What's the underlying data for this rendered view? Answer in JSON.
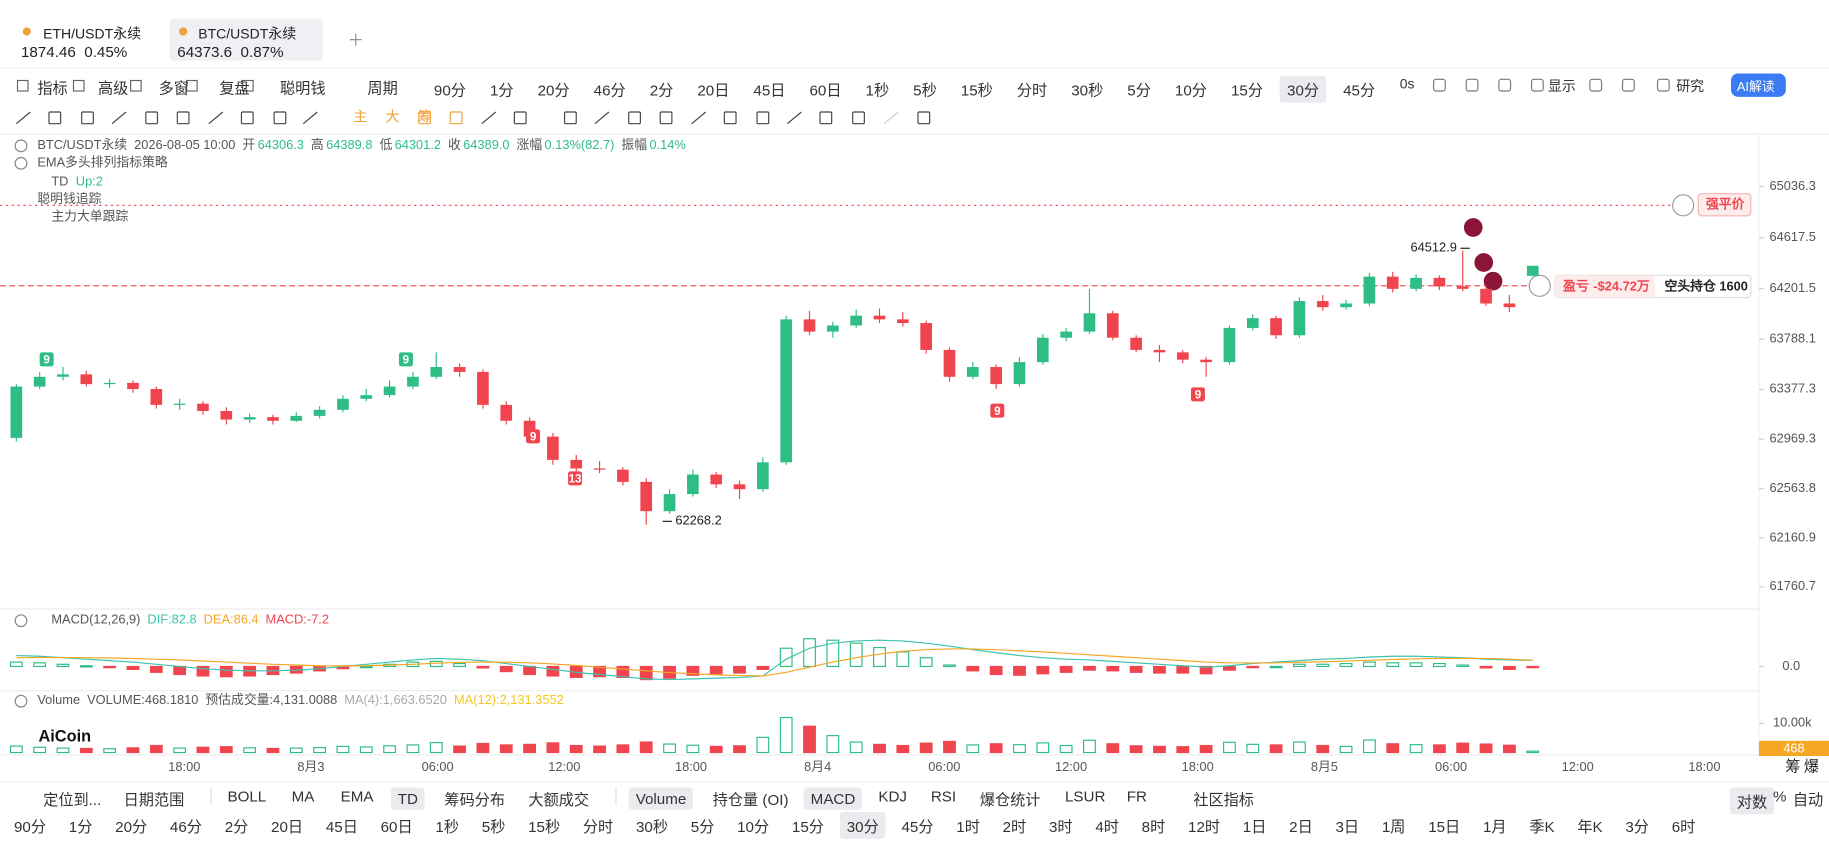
{
  "tabs": [
    {
      "symbol": "ETH/USDT永续",
      "price": "1874.46",
      "change": "0.45%"
    },
    {
      "symbol": "BTC/USDT永续",
      "price": "64373.6",
      "change": "0.87%"
    }
  ],
  "toolbar": {
    "tools": [
      "指标",
      "高级",
      "多窗",
      "复盘",
      "聪明钱"
    ],
    "period_label": "周期",
    "periods": [
      "90分",
      "1分",
      "20分",
      "46分",
      "2分",
      "20日",
      "45日",
      "60日",
      "1秒",
      "5秒",
      "15秒",
      "分时",
      "30秒",
      "5分",
      "10分",
      "15分",
      "30分",
      "45分"
    ],
    "active_period": 16,
    "right": [
      "0s",
      "显示",
      "研究",
      "AI解读"
    ]
  },
  "drawing_texts": [
    "主",
    "大",
    "筹"
  ],
  "legend": {
    "symbol": "BTC/USDT永续",
    "time": "2026-08-05 10:00",
    "fields": [
      {
        "label": "开",
        "value": "64306.3"
      },
      {
        "label": "高",
        "value": "64389.8"
      },
      {
        "label": "低",
        "value": "64301.2"
      },
      {
        "label": "收",
        "value": "64389.0"
      },
      {
        "label": "涨幅",
        "value": "0.13%(82.7)"
      },
      {
        "label": "振幅",
        "value": "0.14%"
      }
    ],
    "indicators": [
      "EMA多头排列指标策略",
      "TD",
      "Up:2",
      "聪明钱追踪",
      "主力大单跟踪"
    ]
  },
  "td_markers": [
    "9",
    "9",
    "9",
    "13",
    "9",
    "9"
  ],
  "overlays": {
    "liquidation": "强平价",
    "pnl_label": "盈亏",
    "pnl_value": "-$24.72万",
    "position": "空头持仓 1600"
  },
  "chart_data": [
    {
      "type": "candlestick",
      "up_color": "#2ebd85",
      "down_color": "#f0454f",
      "ohlc": [
        [
          62980,
          63420,
          62950,
          63400
        ],
        [
          63400,
          63520,
          63380,
          63480
        ],
        [
          63480,
          63560,
          63450,
          63500
        ],
        [
          63500,
          63530,
          63400,
          63420
        ],
        [
          63420,
          63460,
          63390,
          63430
        ],
        [
          63430,
          63450,
          63350,
          63380
        ],
        [
          63380,
          63400,
          63220,
          63250
        ],
        [
          63250,
          63300,
          63210,
          63260
        ],
        [
          63260,
          63280,
          63170,
          63200
        ],
        [
          63200,
          63230,
          63090,
          63130
        ],
        [
          63130,
          63180,
          63100,
          63150
        ],
        [
          63150,
          63170,
          63090,
          63120
        ],
        [
          63120,
          63190,
          63110,
          63160
        ],
        [
          63160,
          63240,
          63140,
          63210
        ],
        [
          63210,
          63330,
          63190,
          63300
        ],
        [
          63300,
          63380,
          63280,
          63330
        ],
        [
          63330,
          63450,
          63310,
          63400
        ],
        [
          63400,
          63520,
          63380,
          63480
        ],
        [
          63480,
          63680,
          63460,
          63560
        ],
        [
          63560,
          63590,
          63480,
          63520
        ],
        [
          63520,
          63540,
          63220,
          63250
        ],
        [
          63250,
          63280,
          63090,
          63120
        ],
        [
          63120,
          63150,
          62950,
          62990
        ],
        [
          62990,
          63020,
          62760,
          62800
        ],
        [
          62800,
          62840,
          62700,
          62730
        ],
        [
          62730,
          62790,
          62690,
          62720
        ],
        [
          62720,
          62740,
          62590,
          62620
        ],
        [
          62620,
          62650,
          62268.2,
          62380
        ],
        [
          62380,
          62560,
          62360,
          62520
        ],
        [
          62520,
          62720,
          62500,
          62680
        ],
        [
          62680,
          62700,
          62570,
          62600
        ],
        [
          62600,
          62630,
          62480,
          62560
        ],
        [
          62560,
          62820,
          62540,
          62780
        ],
        [
          62780,
          63980,
          62760,
          63950
        ],
        [
          63950,
          64020,
          63820,
          63850
        ],
        [
          63850,
          63930,
          63800,
          63900
        ],
        [
          63900,
          64030,
          63880,
          63980
        ],
        [
          63980,
          64040,
          63920,
          63950
        ],
        [
          63950,
          64010,
          63890,
          63920
        ],
        [
          63920,
          63940,
          63670,
          63700
        ],
        [
          63700,
          63720,
          63440,
          63480
        ],
        [
          63480,
          63600,
          63460,
          63560
        ],
        [
          63560,
          63580,
          63380,
          63420
        ],
        [
          63420,
          63640,
          63400,
          63600
        ],
        [
          63600,
          63830,
          63580,
          63800
        ],
        [
          63800,
          63880,
          63770,
          63850
        ],
        [
          63850,
          64200,
          63830,
          64000
        ],
        [
          64000,
          64020,
          63780,
          63800
        ],
        [
          63800,
          63820,
          63680,
          63700
        ],
        [
          63700,
          63740,
          63600,
          63680
        ],
        [
          63680,
          63700,
          63590,
          63620
        ],
        [
          63620,
          63640,
          63480,
          63600
        ],
        [
          63600,
          63900,
          63580,
          63880
        ],
        [
          63880,
          63990,
          63860,
          63960
        ],
        [
          63960,
          63980,
          63790,
          63820
        ],
        [
          63820,
          64130,
          63800,
          64100
        ],
        [
          64100,
          64150,
          64020,
          64050
        ],
        [
          64050,
          64110,
          64030,
          64080
        ],
        [
          64080,
          64330,
          64060,
          64300
        ],
        [
          64300,
          64340,
          64170,
          64200
        ],
        [
          64200,
          64320,
          64180,
          64290
        ],
        [
          64290,
          64310,
          64190,
          64220
        ],
        [
          64220,
          64512.9,
          64180,
          64200
        ],
        [
          64200,
          64230,
          64060,
          64080
        ],
        [
          64080,
          64150,
          64010,
          64050
        ],
        [
          64306.3,
          64389.8,
          64301.2,
          64389.0
        ]
      ],
      "max_label": 64512.9,
      "min_label": 62268.2,
      "ylim": [
        61598.3,
        65446.9
      ],
      "yticks": [
        65036.3,
        64617.5,
        64201.5,
        63788.1,
        63377.3,
        62969.3,
        62563.8,
        62160.9,
        61760.7
      ],
      "time_labels": [
        "18:00",
        "8月3",
        "06:00",
        "12:00",
        "18:00",
        "8月4",
        "06:00",
        "12:00",
        "18:00",
        "8月5",
        "06:00",
        "12:00",
        "18:00"
      ],
      "axis_extra": [
        "筹",
        "爆"
      ]
    },
    {
      "type": "macd",
      "title": "MACD(12,26,9)",
      "header_labels": [
        "DIF:",
        "DEA:",
        "MACD:"
      ],
      "series": [
        {
          "name": "DIF",
          "color": "#3cc3b0",
          "values": [
            150,
            140,
            120,
            100,
            80,
            60,
            30,
            0,
            -30,
            -50,
            -60,
            -60,
            -50,
            -30,
            0,
            30,
            60,
            90,
            110,
            100,
            80,
            40,
            0,
            -40,
            -80,
            -110,
            -140,
            -170,
            -180,
            -170,
            -160,
            -150,
            -130,
            100,
            250,
            320,
            350,
            360,
            350,
            320,
            280,
            230,
            190,
            150,
            120,
            100,
            90,
            70,
            50,
            30,
            10,
            -10,
            10,
            40,
            60,
            80,
            100,
            110,
            130,
            140,
            140,
            130,
            120,
            100,
            90,
            82.8
          ]
        },
        {
          "name": "DEA",
          "color": "#f5a623",
          "values": [
            120,
            122,
            122,
            120,
            116,
            110,
            100,
            90,
            75,
            60,
            45,
            30,
            20,
            10,
            8,
            10,
            20,
            30,
            45,
            55,
            60,
            58,
            50,
            35,
            15,
            -10,
            -35,
            -60,
            -85,
            -100,
            -115,
            -125,
            -130,
            -80,
            -10,
            60,
            120,
            170,
            210,
            230,
            240,
            240,
            230,
            215,
            200,
            180,
            160,
            140,
            120,
            100,
            80,
            60,
            50,
            48,
            50,
            56,
            65,
            74,
            85,
            96,
            105,
            110,
            112,
            110,
            100,
            86.4
          ]
        },
        {
          "name": "MACD",
          "color": "#f0454f",
          "values": [
            60,
            50,
            30,
            10,
            -10,
            -40,
            -80,
            -110,
            -130,
            -140,
            -130,
            -110,
            -90,
            -60,
            -30,
            0,
            30,
            60,
            70,
            40,
            -20,
            -70,
            -110,
            -130,
            -150,
            -140,
            -150,
            -180,
            -160,
            -120,
            -100,
            -90,
            -40,
            250,
            380,
            360,
            320,
            260,
            200,
            120,
            20,
            -60,
            -110,
            -120,
            -100,
            -80,
            -50,
            -60,
            -80,
            -90,
            -90,
            -100,
            -50,
            -10,
            0,
            30,
            30,
            40,
            60,
            50,
            50,
            40,
            20,
            -20,
            -40,
            -7.2
          ]
        }
      ],
      "ylim": [
        -300,
        500
      ],
      "yticks": [
        {
          "value": 0,
          "label": "0.0"
        }
      ]
    },
    {
      "type": "bar",
      "title": "Volume",
      "stats": [
        "VOLUME:468.1810",
        "预估成交量:4,131.0088",
        "MA(4):1,663.6520",
        "MA(12):2,131.3552"
      ],
      "values": [
        2200,
        1800,
        1500,
        1400,
        1300,
        1600,
        2400,
        1500,
        1800,
        2000,
        1600,
        1400,
        1500,
        1700,
        2100,
        1900,
        2300,
        2600,
        3400,
        2200,
        3100,
        2600,
        2800,
        3300,
        2400,
        2200,
        2600,
        3600,
        2900,
        2500,
        2100,
        2300,
        5200,
        12000,
        9000,
        5800,
        3600,
        2800,
        2400,
        3200,
        3800,
        2600,
        3000,
        2700,
        3300,
        2400,
        4200,
        3000,
        2300,
        2100,
        2000,
        2400,
        3500,
        2800,
        2600,
        3600,
        2400,
        2100,
        4300,
        3000,
        2700,
        2600,
        3200,
        2900,
        2500,
        468.181
      ],
      "current_label": "468",
      "ylim": [
        0,
        15000
      ],
      "yticks": [
        {
          "value": 10000,
          "label": "10.00k"
        }
      ],
      "logo": "AiCoin"
    }
  ],
  "bottom": {
    "locate": "定位到...",
    "range": "日期范围",
    "indicators": [
      "BOLL",
      "MA",
      "EMA",
      "TD",
      "筹码分布",
      "大额成交"
    ],
    "active_indicators": [
      3
    ],
    "subcharts": [
      "Volume",
      "持仓量 (OI)",
      "MACD",
      "KDJ",
      "RSI",
      "爆仓统计",
      "LSUR",
      "FR",
      "社区指标"
    ],
    "active_subcharts": [
      0,
      2
    ],
    "scale": [
      "对数",
      "%",
      "自动"
    ],
    "active_scale": [
      0
    ],
    "periods": [
      "90分",
      "1分",
      "20分",
      "46分",
      "2分",
      "20日",
      "45日",
      "60日",
      "1秒",
      "5秒",
      "15秒",
      "分时",
      "30秒",
      "5分",
      "10分",
      "15分",
      "30分",
      "45分",
      "1时",
      "2时",
      "3时",
      "4时",
      "8时",
      "12时",
      "1日",
      "2日",
      "3日",
      "1周",
      "15日",
      "1月",
      "季K",
      "年K",
      "3分",
      "6时"
    ],
    "active_period": 16
  }
}
